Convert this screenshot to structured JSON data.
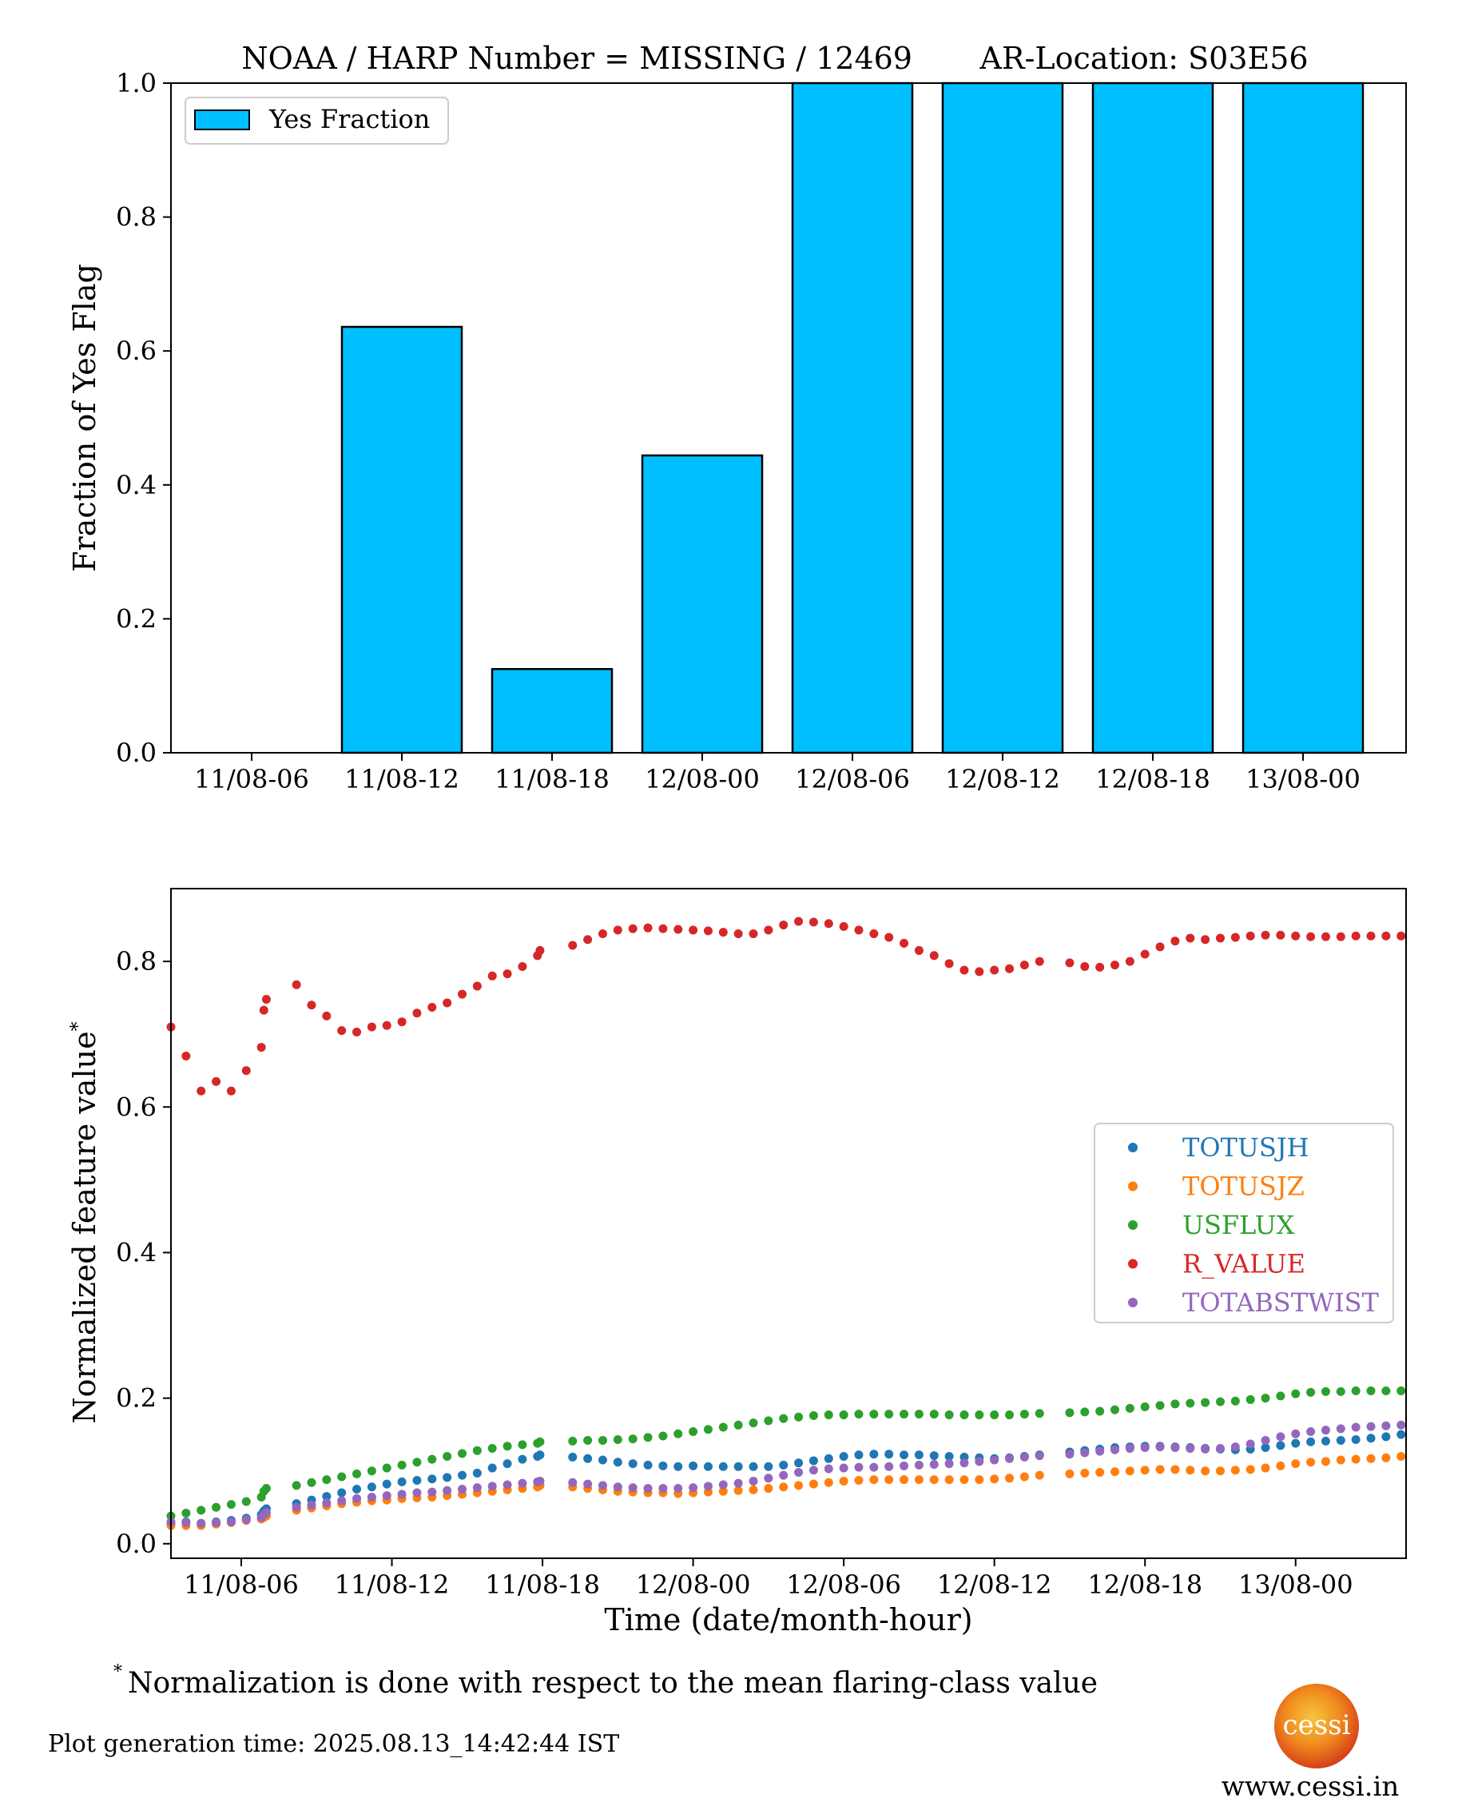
{
  "title": "NOAA / HARP Number = MISSING / 12469       AR-Location: S03E56",
  "footnote_marker": "*",
  "footnote_text": "Normalization is done with respect to the mean flaring-class value",
  "generation_time": "Plot generation time: 2025.08.13_14:42:44 IST",
  "logo": {
    "text": "cessi",
    "url": "www.cessi.in",
    "colors": [
      "#f7c63d",
      "#f08a1e",
      "#d6401a"
    ]
  },
  "chart_data": [
    {
      "type": "bar",
      "title": "NOAA / HARP Number = MISSING / 12469       AR-Location: S03E56",
      "categories": [
        "11/08-06",
        "11/08-12",
        "11/08-18",
        "12/08-00",
        "12/08-06",
        "12/08-12",
        "12/08-18",
        "13/08-00"
      ],
      "values": [
        0.0,
        0.636,
        0.125,
        0.444,
        1.0,
        1.0,
        1.0,
        1.0
      ],
      "series_name": "Yes Fraction",
      "color": "#00bfff",
      "ylabel": "Fraction of Yes Flag",
      "xlabel": "",
      "ylim": [
        0,
        1.0
      ],
      "yticks": [
        "0.0",
        "0.2",
        "0.4",
        "0.6",
        "0.8",
        "1.0"
      ],
      "legend_position": "upper-left",
      "grid": false
    },
    {
      "type": "scatter",
      "xlabel": "Time (date/month-hour)",
      "ylabel": "Normalized feature value",
      "ylabel_superscript": "*",
      "ylim": [
        -0.02,
        0.9
      ],
      "yticks": [
        "0.0",
        "0.2",
        "0.4",
        "0.6",
        "0.8"
      ],
      "xticks": [
        "11/08-06",
        "11/08-12",
        "11/08-18",
        "12/08-00",
        "12/08-06",
        "12/08-12",
        "12/08-18",
        "13/08-00"
      ],
      "x_start": "11/08-03:12",
      "x_end": "13/08-04:24",
      "legend_position": "center-right",
      "grid": false,
      "x": [
        "11/08-03:12",
        "11/08-03:48",
        "11/08-04:24",
        "11/08-05:00",
        "11/08-05:36",
        "11/08-06:12",
        "11/08-06:48",
        "11/08-06:54",
        "11/08-07:00",
        "11/08-08:12",
        "11/08-08:48",
        "11/08-09:24",
        "11/08-10:00",
        "11/08-10:36",
        "11/08-11:12",
        "11/08-11:48",
        "11/08-12:24",
        "11/08-13:00",
        "11/08-13:36",
        "11/08-14:12",
        "11/08-14:48",
        "11/08-15:24",
        "11/08-16:00",
        "11/08-16:36",
        "11/08-17:12",
        "11/08-17:48",
        "11/08-17:54",
        "11/08-19:12",
        "11/08-19:48",
        "11/08-20:24",
        "11/08-21:00",
        "11/08-21:36",
        "11/08-22:12",
        "11/08-22:48",
        "11/08-23:24",
        "12/08-00:00",
        "12/08-00:36",
        "12/08-01:12",
        "12/08-01:48",
        "12/08-02:24",
        "12/08-03:00",
        "12/08-03:36",
        "12/08-04:12",
        "12/08-04:48",
        "12/08-05:24",
        "12/08-06:00",
        "12/08-06:36",
        "12/08-07:12",
        "12/08-07:48",
        "12/08-08:24",
        "12/08-09:00",
        "12/08-09:36",
        "12/08-10:12",
        "12/08-10:48",
        "12/08-11:24",
        "12/08-12:00",
        "12/08-12:36",
        "12/08-13:12",
        "12/08-13:48",
        "12/08-15:00",
        "12/08-15:36",
        "12/08-16:12",
        "12/08-16:48",
        "12/08-17:24",
        "12/08-18:00",
        "12/08-18:36",
        "12/08-19:12",
        "12/08-19:48",
        "12/08-20:24",
        "12/08-21:00",
        "12/08-21:36",
        "12/08-22:12",
        "12/08-22:48",
        "12/08-23:24",
        "13/08-00:00",
        "13/08-00:36",
        "13/08-01:12",
        "13/08-01:48",
        "13/08-02:24",
        "13/08-03:00",
        "13/08-03:36",
        "13/08-04:12"
      ],
      "series": [
        {
          "name": "TOTUSJH",
          "color": "#1f77b4",
          "values": [
            0.028,
            0.03,
            0.028,
            0.03,
            0.032,
            0.035,
            0.04,
            0.045,
            0.048,
            0.055,
            0.06,
            0.065,
            0.07,
            0.075,
            0.078,
            0.082,
            0.085,
            0.087,
            0.089,
            0.091,
            0.094,
            0.097,
            0.104,
            0.11,
            0.116,
            0.12,
            0.122,
            0.119,
            0.117,
            0.115,
            0.112,
            0.11,
            0.108,
            0.107,
            0.106,
            0.107,
            0.106,
            0.106,
            0.106,
            0.106,
            0.106,
            0.108,
            0.111,
            0.114,
            0.117,
            0.12,
            0.122,
            0.123,
            0.123,
            0.122,
            0.122,
            0.121,
            0.12,
            0.119,
            0.118,
            0.117,
            0.118,
            0.12,
            0.122,
            0.126,
            0.128,
            0.13,
            0.132,
            0.133,
            0.134,
            0.134,
            0.133,
            0.132,
            0.131,
            0.13,
            0.129,
            0.13,
            0.132,
            0.135,
            0.138,
            0.14,
            0.141,
            0.142,
            0.143,
            0.145,
            0.147,
            0.15
          ]
        },
        {
          "name": "TOTUSJZ",
          "color": "#ff7f0e",
          "values": [
            0.025,
            0.025,
            0.025,
            0.027,
            0.029,
            0.032,
            0.034,
            0.036,
            0.038,
            0.046,
            0.049,
            0.052,
            0.055,
            0.057,
            0.059,
            0.06,
            0.062,
            0.063,
            0.064,
            0.066,
            0.068,
            0.07,
            0.072,
            0.074,
            0.076,
            0.078,
            0.08,
            0.078,
            0.076,
            0.074,
            0.072,
            0.071,
            0.07,
            0.07,
            0.069,
            0.07,
            0.071,
            0.072,
            0.073,
            0.074,
            0.076,
            0.078,
            0.08,
            0.082,
            0.084,
            0.086,
            0.087,
            0.088,
            0.088,
            0.088,
            0.088,
            0.088,
            0.088,
            0.088,
            0.088,
            0.089,
            0.09,
            0.092,
            0.094,
            0.096,
            0.097,
            0.098,
            0.099,
            0.1,
            0.101,
            0.102,
            0.102,
            0.101,
            0.1,
            0.1,
            0.101,
            0.102,
            0.104,
            0.107,
            0.11,
            0.112,
            0.113,
            0.115,
            0.116,
            0.117,
            0.118,
            0.12
          ]
        },
        {
          "name": "USFLUX",
          "color": "#2ca02c",
          "values": [
            0.038,
            0.042,
            0.046,
            0.05,
            0.054,
            0.058,
            0.064,
            0.072,
            0.076,
            0.08,
            0.084,
            0.088,
            0.092,
            0.096,
            0.1,
            0.104,
            0.108,
            0.112,
            0.116,
            0.12,
            0.124,
            0.128,
            0.131,
            0.134,
            0.136,
            0.138,
            0.14,
            0.141,
            0.142,
            0.142,
            0.143,
            0.144,
            0.146,
            0.148,
            0.151,
            0.154,
            0.157,
            0.16,
            0.163,
            0.166,
            0.169,
            0.172,
            0.174,
            0.176,
            0.177,
            0.177,
            0.178,
            0.178,
            0.178,
            0.178,
            0.178,
            0.178,
            0.177,
            0.177,
            0.177,
            0.177,
            0.177,
            0.178,
            0.179,
            0.18,
            0.181,
            0.182,
            0.184,
            0.186,
            0.188,
            0.19,
            0.192,
            0.193,
            0.194,
            0.195,
            0.196,
            0.198,
            0.2,
            0.203,
            0.206,
            0.208,
            0.209,
            0.209,
            0.21,
            0.21,
            0.21,
            0.21
          ]
        },
        {
          "name": "R_VALUE",
          "color": "#d62728",
          "values": [
            0.71,
            0.67,
            0.622,
            0.635,
            0.622,
            0.65,
            0.682,
            0.733,
            0.748,
            0.768,
            0.74,
            0.725,
            0.705,
            0.703,
            0.71,
            0.712,
            0.717,
            0.729,
            0.737,
            0.743,
            0.755,
            0.766,
            0.78,
            0.783,
            0.793,
            0.808,
            0.815,
            0.822,
            0.83,
            0.838,
            0.843,
            0.845,
            0.846,
            0.845,
            0.844,
            0.843,
            0.842,
            0.84,
            0.838,
            0.838,
            0.843,
            0.85,
            0.855,
            0.854,
            0.852,
            0.848,
            0.843,
            0.838,
            0.833,
            0.825,
            0.815,
            0.808,
            0.797,
            0.788,
            0.786,
            0.788,
            0.79,
            0.795,
            0.8,
            0.798,
            0.793,
            0.792,
            0.795,
            0.8,
            0.81,
            0.82,
            0.828,
            0.832,
            0.83,
            0.832,
            0.833,
            0.835,
            0.836,
            0.836,
            0.835,
            0.834,
            0.834,
            0.834,
            0.835,
            0.835,
            0.835,
            0.835
          ]
        },
        {
          "name": "TOTABSTWIST",
          "color": "#9467bd",
          "values": [
            0.03,
            0.029,
            0.028,
            0.029,
            0.03,
            0.033,
            0.036,
            0.04,
            0.043,
            0.05,
            0.053,
            0.056,
            0.059,
            0.062,
            0.064,
            0.066,
            0.068,
            0.07,
            0.071,
            0.073,
            0.075,
            0.077,
            0.079,
            0.081,
            0.083,
            0.085,
            0.086,
            0.084,
            0.082,
            0.08,
            0.078,
            0.077,
            0.076,
            0.076,
            0.076,
            0.077,
            0.079,
            0.081,
            0.083,
            0.086,
            0.09,
            0.094,
            0.098,
            0.101,
            0.103,
            0.104,
            0.105,
            0.105,
            0.106,
            0.107,
            0.108,
            0.109,
            0.11,
            0.111,
            0.113,
            0.115,
            0.117,
            0.119,
            0.121,
            0.123,
            0.125,
            0.127,
            0.129,
            0.131,
            0.132,
            0.133,
            0.132,
            0.131,
            0.13,
            0.131,
            0.133,
            0.137,
            0.142,
            0.147,
            0.151,
            0.154,
            0.156,
            0.158,
            0.16,
            0.161,
            0.162,
            0.163
          ]
        }
      ]
    }
  ]
}
